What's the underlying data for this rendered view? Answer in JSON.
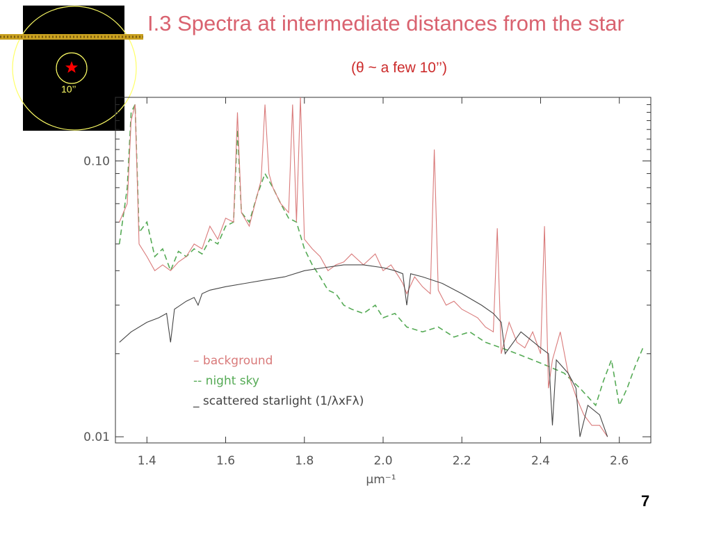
{
  "slide": {
    "title": "I.3 Spectra at intermediate distances from the star",
    "subtitle": "(θ ~ a few 10’’)",
    "page_number": "7"
  },
  "inset": {
    "label": "10’’",
    "colors": {
      "background": "#000000",
      "circle": "#ffff66",
      "star": "#ff0000",
      "label": "#ffff66",
      "band": "#c8a020"
    }
  },
  "chart_data": {
    "type": "line",
    "title": "",
    "xlabel": "μm⁻¹",
    "ylabel": "",
    "xlim": [
      1.32,
      2.68
    ],
    "ylim": [
      0.0095,
      0.17
    ],
    "yscale": "log",
    "xticks": [
      1.4,
      1.6,
      1.8,
      2.0,
      2.2,
      2.4,
      2.6
    ],
    "xtick_labels": [
      "1.4",
      "1.6",
      "1.8",
      "2.0",
      "2.2",
      "2.4",
      "2.6"
    ],
    "yticks": [
      0.01,
      0.1
    ],
    "ytick_labels": [
      "0.01",
      "0.10"
    ],
    "grid": false,
    "legend_position": "lower-left",
    "series": [
      {
        "name": "background",
        "legend_label": "– background",
        "color": "#d97a7a",
        "style": "solid",
        "x": [
          1.33,
          1.35,
          1.36,
          1.37,
          1.38,
          1.4,
          1.42,
          1.44,
          1.46,
          1.48,
          1.5,
          1.52,
          1.54,
          1.56,
          1.58,
          1.6,
          1.62,
          1.63,
          1.64,
          1.66,
          1.68,
          1.69,
          1.7,
          1.71,
          1.72,
          1.74,
          1.76,
          1.77,
          1.78,
          1.79,
          1.8,
          1.82,
          1.84,
          1.86,
          1.88,
          1.9,
          1.92,
          1.95,
          1.98,
          2.0,
          2.02,
          2.04,
          2.05,
          2.06,
          2.08,
          2.1,
          2.12,
          2.13,
          2.14,
          2.16,
          2.18,
          2.2,
          2.22,
          2.24,
          2.26,
          2.28,
          2.29,
          2.3,
          2.32,
          2.34,
          2.36,
          2.38,
          2.4,
          2.41,
          2.42,
          2.43,
          2.45,
          2.47,
          2.49,
          2.51,
          2.53,
          2.55,
          2.57
        ],
        "y": [
          0.06,
          0.07,
          0.14,
          0.16,
          0.05,
          0.045,
          0.04,
          0.042,
          0.04,
          0.043,
          0.045,
          0.05,
          0.048,
          0.058,
          0.052,
          0.062,
          0.06,
          0.15,
          0.065,
          0.058,
          0.075,
          0.085,
          0.16,
          0.09,
          0.08,
          0.07,
          0.065,
          0.16,
          0.06,
          0.17,
          0.052,
          0.048,
          0.045,
          0.04,
          0.042,
          0.043,
          0.046,
          0.042,
          0.046,
          0.04,
          0.042,
          0.038,
          0.036,
          0.033,
          0.038,
          0.035,
          0.033,
          0.11,
          0.034,
          0.03,
          0.031,
          0.029,
          0.028,
          0.027,
          0.025,
          0.024,
          0.057,
          0.02,
          0.026,
          0.022,
          0.021,
          0.024,
          0.02,
          0.058,
          0.015,
          0.019,
          0.024,
          0.017,
          0.014,
          0.012,
          0.011,
          0.011,
          0.01
        ]
      },
      {
        "name": "night sky",
        "legend_label": "-- night sky",
        "color": "#55aa55",
        "style": "dashed",
        "x": [
          1.33,
          1.35,
          1.36,
          1.37,
          1.38,
          1.4,
          1.42,
          1.44,
          1.46,
          1.48,
          1.5,
          1.52,
          1.54,
          1.56,
          1.58,
          1.6,
          1.62,
          1.63,
          1.64,
          1.66,
          1.68,
          1.7,
          1.72,
          1.74,
          1.76,
          1.78,
          1.8,
          1.82,
          1.84,
          1.86,
          1.88,
          1.9,
          1.92,
          1.95,
          1.98,
          2.0,
          2.03,
          2.06,
          2.1,
          2.14,
          2.18,
          2.22,
          2.26,
          2.3,
          2.34,
          2.38,
          2.42,
          2.46,
          2.5,
          2.54,
          2.56,
          2.58,
          2.6,
          2.62,
          2.64,
          2.66
        ],
        "y": [
          0.05,
          0.08,
          0.15,
          0.16,
          0.055,
          0.06,
          0.045,
          0.048,
          0.04,
          0.047,
          0.045,
          0.048,
          0.046,
          0.052,
          0.05,
          0.058,
          0.06,
          0.13,
          0.065,
          0.06,
          0.075,
          0.09,
          0.08,
          0.07,
          0.062,
          0.06,
          0.048,
          0.042,
          0.038,
          0.034,
          0.033,
          0.03,
          0.029,
          0.028,
          0.03,
          0.027,
          0.028,
          0.025,
          0.024,
          0.025,
          0.023,
          0.024,
          0.022,
          0.021,
          0.02,
          0.019,
          0.018,
          0.017,
          0.015,
          0.013,
          0.016,
          0.019,
          0.013,
          0.015,
          0.018,
          0.021
        ]
      },
      {
        "name": "scattered starlight (1/λxFλ)",
        "legend_label": "_ scattered starlight (1/λxFλ)",
        "color": "#444444",
        "style": "solid",
        "x": [
          1.33,
          1.36,
          1.4,
          1.43,
          1.45,
          1.46,
          1.47,
          1.5,
          1.52,
          1.53,
          1.54,
          1.56,
          1.6,
          1.65,
          1.7,
          1.75,
          1.8,
          1.85,
          1.9,
          1.95,
          2.0,
          2.03,
          2.05,
          2.06,
          2.07,
          2.1,
          2.15,
          2.2,
          2.25,
          2.28,
          2.3,
          2.31,
          2.35,
          2.4,
          2.42,
          2.43,
          2.44,
          2.47,
          2.49,
          2.5,
          2.52,
          2.55,
          2.57
        ],
        "y": [
          0.022,
          0.024,
          0.026,
          0.027,
          0.028,
          0.022,
          0.029,
          0.031,
          0.032,
          0.03,
          0.033,
          0.034,
          0.035,
          0.036,
          0.037,
          0.038,
          0.04,
          0.041,
          0.042,
          0.042,
          0.041,
          0.04,
          0.039,
          0.03,
          0.039,
          0.038,
          0.036,
          0.033,
          0.03,
          0.028,
          0.026,
          0.02,
          0.024,
          0.021,
          0.02,
          0.011,
          0.019,
          0.017,
          0.015,
          0.01,
          0.013,
          0.012,
          0.01
        ]
      }
    ]
  }
}
